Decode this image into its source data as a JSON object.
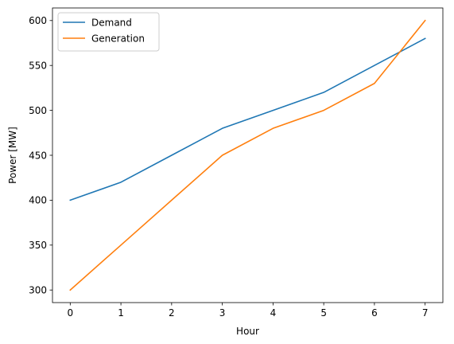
{
  "chart_data": {
    "type": "line",
    "title": "",
    "xlabel": "Hour",
    "ylabel": "Power [MW]",
    "x": [
      0,
      1,
      2,
      3,
      4,
      5,
      6,
      7
    ],
    "xlim": [
      -0.35,
      7.35
    ],
    "ylim": [
      286,
      614
    ],
    "xticks": [
      0,
      1,
      2,
      3,
      4,
      5,
      6,
      7
    ],
    "yticks": [
      300,
      350,
      400,
      450,
      500,
      550,
      600
    ],
    "grid": false,
    "legend": {
      "placement": "top-left",
      "entries": [
        "Demand",
        "Generation"
      ]
    },
    "series": [
      {
        "name": "Demand",
        "color": "#1f77b4",
        "values": [
          400,
          420,
          450,
          480,
          500,
          520,
          550,
          580
        ]
      },
      {
        "name": "Generation",
        "color": "#ff7f0e",
        "values": [
          300,
          350,
          400,
          450,
          480,
          500,
          530,
          600
        ]
      }
    ]
  }
}
